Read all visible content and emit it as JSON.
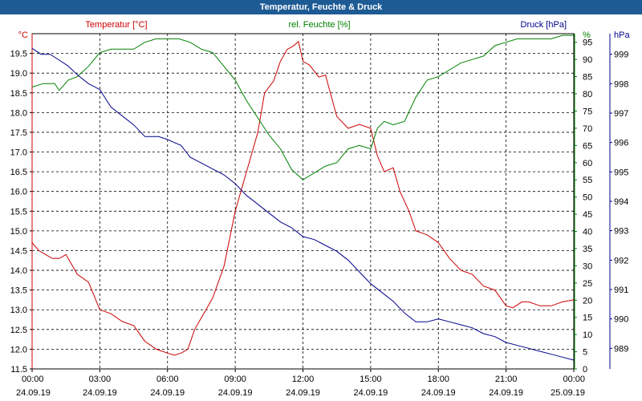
{
  "title": "Temperatur, Feuchte & Druck",
  "colors": {
    "temperature": "#cc0000",
    "humidity": "#008000",
    "pressure": "#00008b",
    "titlebar": "#1e5b94"
  },
  "chart_data": {
    "type": "line",
    "grid": true,
    "x_ticks": [
      {
        "time": "00:00",
        "date": "24.09.19"
      },
      {
        "time": "03:00",
        "date": "24.09.19"
      },
      {
        "time": "06:00",
        "date": "24.09.19"
      },
      {
        "time": "09:00",
        "date": "24.09.19"
      },
      {
        "time": "12:00",
        "date": "24.09.19"
      },
      {
        "time": "15:00",
        "date": "24.09.19"
      },
      {
        "time": "18:00",
        "date": "24.09.19"
      },
      {
        "time": "21:00",
        "date": "24.09.19"
      },
      {
        "time": "00:00",
        "date": "25.09.19"
      }
    ],
    "xlim": [
      0,
      24
    ],
    "axes": {
      "temperature": {
        "label": "Temperatur [°C]",
        "unit": "°C",
        "ylim": [
          11.5,
          20.0
        ],
        "ticks": [
          "11.5",
          "12.0",
          "12.5",
          "13.0",
          "13.5",
          "14.0",
          "14.5",
          "15.0",
          "15.5",
          "16.0",
          "16.5",
          "17.0",
          "17.5",
          "18.0",
          "18.5",
          "19.0",
          "19.5"
        ]
      },
      "humidity": {
        "label": "rel. Feuchte [%]",
        "unit": "%",
        "ylim": [
          0,
          97.5
        ],
        "ticks": [
          "0",
          "5",
          "10",
          "15",
          "20",
          "25",
          "30",
          "35",
          "40",
          "45",
          "50",
          "55",
          "60",
          "65",
          "70",
          "75",
          "80",
          "85",
          "90",
          "95"
        ]
      },
      "pressure": {
        "label": "Druck [hPa]",
        "unit": "hPa",
        "ylim": [
          988.3,
          999.7
        ],
        "ticks": [
          "989",
          "990",
          "991",
          "992",
          "993",
          "994",
          "995",
          "996",
          "997",
          "998",
          "999"
        ]
      }
    },
    "series": [
      {
        "key": "temperature",
        "name": "Temperatur [°C]",
        "x": [
          0,
          0.3,
          0.6,
          0.9,
          1.2,
          1.5,
          2,
          2.5,
          3,
          3.5,
          4,
          4.5,
          5,
          5.5,
          6,
          6.3,
          6.6,
          6.9,
          7.2,
          7.6,
          8,
          8.5,
          9,
          9.5,
          10,
          10.3,
          10.7,
          11,
          11.3,
          11.6,
          11.8,
          12,
          12.3,
          12.7,
          13,
          13.5,
          14,
          14.5,
          15,
          15.3,
          15.6,
          16,
          16.3,
          16.7,
          17,
          17.5,
          18,
          18.5,
          19,
          19.5,
          20,
          20.5,
          21,
          21.3,
          21.7,
          22,
          22.5,
          23,
          23.5,
          24
        ],
        "values": [
          14.7,
          14.5,
          14.4,
          14.3,
          14.3,
          14.4,
          13.9,
          13.7,
          13.0,
          12.9,
          12.7,
          12.6,
          12.2,
          12.0,
          11.9,
          11.85,
          11.9,
          12.0,
          12.5,
          12.9,
          13.3,
          14.1,
          15.5,
          16.5,
          17.5,
          18.5,
          18.8,
          19.3,
          19.6,
          19.7,
          19.8,
          19.3,
          19.2,
          18.9,
          18.95,
          17.9,
          17.6,
          17.7,
          17.6,
          16.9,
          16.5,
          16.6,
          16.0,
          15.5,
          15.0,
          14.9,
          14.7,
          14.3,
          14.0,
          13.9,
          13.6,
          13.5,
          13.1,
          13.05,
          13.2,
          13.2,
          13.1,
          13.1,
          13.2,
          13.25
        ]
      },
      {
        "key": "humidity",
        "name": "rel. Feuchte [%]",
        "x": [
          0,
          0.5,
          1,
          1.2,
          1.6,
          2,
          2.5,
          3,
          3.5,
          4,
          4.5,
          5,
          5.5,
          6,
          6.5,
          7,
          7.5,
          8,
          8.5,
          9,
          9.5,
          10,
          10.5,
          11,
          11.5,
          12,
          12.5,
          13,
          13.5,
          14,
          14.5,
          15,
          15.3,
          15.6,
          16,
          16.5,
          17,
          17.5,
          18,
          18.5,
          19,
          19.5,
          20,
          20.5,
          21,
          21.5,
          22,
          22.5,
          23,
          23.5,
          24
        ],
        "values": [
          82,
          83,
          83,
          81,
          84,
          85,
          88,
          92,
          93,
          93,
          93,
          95,
          96,
          96,
          96,
          95,
          93,
          92,
          88,
          84,
          78,
          73,
          68,
          64,
          58,
          55,
          57,
          59,
          60,
          64,
          65,
          64,
          70,
          72,
          71,
          72,
          79,
          84,
          85,
          87,
          89,
          90,
          91,
          94,
          95,
          96,
          96,
          96,
          96,
          97,
          97
        ]
      },
      {
        "key": "pressure",
        "name": "Druck [hPa]",
        "x": [
          0,
          0.4,
          0.8,
          1.2,
          1.6,
          2,
          2.5,
          3,
          3.5,
          4,
          4.5,
          5,
          5.3,
          5.6,
          6,
          6.3,
          6.6,
          7,
          7.5,
          8,
          8.5,
          9,
          9.5,
          10,
          10.5,
          11,
          11.5,
          12,
          12.5,
          13,
          13.5,
          14,
          14.5,
          15,
          15.5,
          16,
          16.5,
          17,
          17.5,
          18,
          18.5,
          19,
          19.5,
          20,
          20.5,
          21,
          21.5,
          22,
          22.5,
          23,
          23.5,
          24
        ],
        "values": [
          999.2,
          999.0,
          999.0,
          998.8,
          998.6,
          998.3,
          998.0,
          997.8,
          997.2,
          996.9,
          996.6,
          996.2,
          996.2,
          996.2,
          996.1,
          996.0,
          995.9,
          995.5,
          995.3,
          995.1,
          994.9,
          994.6,
          994.2,
          993.9,
          993.6,
          993.3,
          993.1,
          992.8,
          992.7,
          992.5,
          992.3,
          992.0,
          991.6,
          991.2,
          990.9,
          990.6,
          990.2,
          989.9,
          989.9,
          990.0,
          989.9,
          989.8,
          989.7,
          989.5,
          989.4,
          989.2,
          989.1,
          989.0,
          988.9,
          988.8,
          988.7,
          988.6
        ]
      }
    ]
  }
}
